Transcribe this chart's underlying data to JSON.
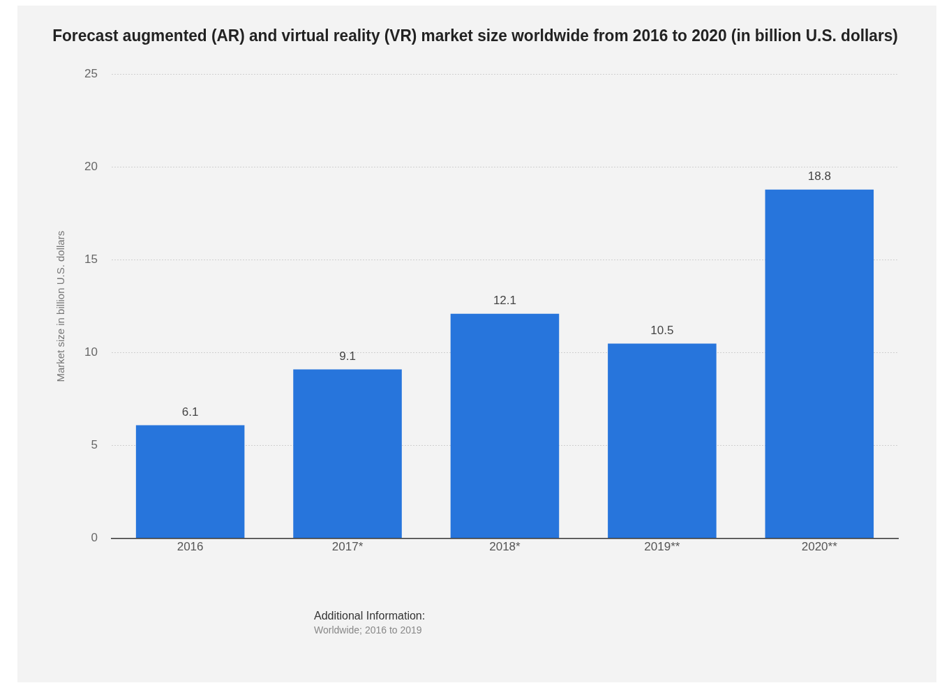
{
  "chart_data": {
    "type": "bar",
    "title": "Forecast augmented (AR) and virtual reality (VR) market size worldwide from 2016 to 2020 (in billion U.S. dollars)",
    "ylabel": "Market size in billion U.S. dollars",
    "categories": [
      "2016",
      "2017*",
      "2018*",
      "2019**",
      "2020**"
    ],
    "values": [
      6.1,
      9.1,
      12.1,
      10.5,
      18.8
    ],
    "color": "#2775dc",
    "ylim": [
      0,
      25
    ],
    "yticks": [
      0,
      5,
      10,
      15,
      20,
      25
    ],
    "grid": "y",
    "data_labels": true,
    "annotations": [
      "Additional Information:",
      "Worldwide; 2016 to 2019"
    ]
  }
}
